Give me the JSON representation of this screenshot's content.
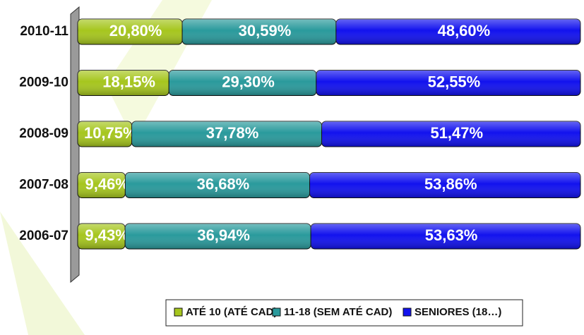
{
  "chart_data": {
    "type": "stacked-bar-horizontal",
    "categories": [
      "2010-11",
      "2009-10",
      "2008-09",
      "2007-08",
      "2006-07"
    ],
    "series": [
      {
        "name": "ATÉ 10 (ATÉ CAD)",
        "color": "#a6c61e",
        "values": [
          20.8,
          18.15,
          10.75,
          9.46,
          9.43
        ],
        "value_labels": [
          "20,80%",
          "18,15%",
          "10,75%",
          "9,46%",
          "9,43%"
        ]
      },
      {
        "name": "11-18 (SEM ATÉ CAD)",
        "color": "#2a9a9c",
        "values": [
          30.59,
          29.3,
          37.78,
          36.68,
          36.94
        ],
        "value_labels": [
          "30,59%",
          "29,30%",
          "37,78%",
          "36,68%",
          "36,94%"
        ]
      },
      {
        "name": "SENIORES (18…)",
        "color": "#1212ee",
        "values": [
          48.6,
          52.55,
          51.47,
          53.86,
          53.63
        ],
        "value_labels": [
          "48,60%",
          "52,55%",
          "51,47%",
          "53,86%",
          "53,63%"
        ]
      }
    ],
    "xlim": [
      0,
      100
    ],
    "legend": "bottom"
  }
}
